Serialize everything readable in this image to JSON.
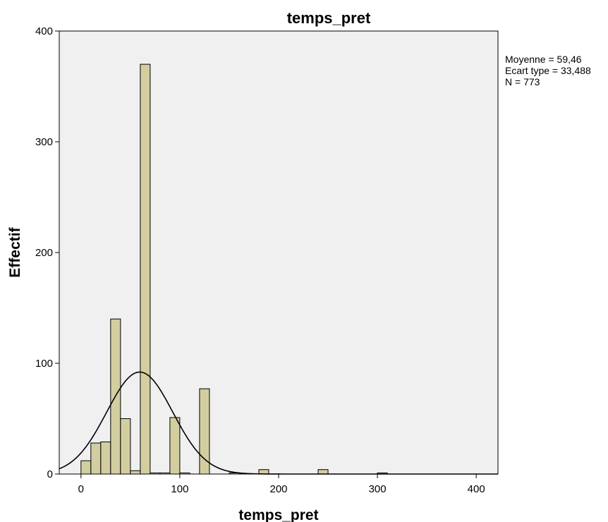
{
  "chart_data": {
    "type": "bar",
    "title": "temps_pret",
    "xlabel": "temps_pret",
    "ylabel": "Effectif",
    "xlim": [
      -22,
      422
    ],
    "ylim": [
      0,
      400
    ],
    "xticks": [
      "0",
      "100",
      "200",
      "300",
      "400"
    ],
    "yticks": [
      "0",
      "100",
      "200",
      "300",
      "400"
    ],
    "bin_width": 10,
    "bins": [
      {
        "x0": 0,
        "x1": 10,
        "count": 12
      },
      {
        "x0": 10,
        "x1": 20,
        "count": 28
      },
      {
        "x0": 20,
        "x1": 30,
        "count": 29
      },
      {
        "x0": 30,
        "x1": 40,
        "count": 140
      },
      {
        "x0": 40,
        "x1": 50,
        "count": 50
      },
      {
        "x0": 50,
        "x1": 60,
        "count": 3
      },
      {
        "x0": 60,
        "x1": 70,
        "count": 370
      },
      {
        "x0": 70,
        "x1": 80,
        "count": 1
      },
      {
        "x0": 80,
        "x1": 90,
        "count": 1
      },
      {
        "x0": 90,
        "x1": 100,
        "count": 51
      },
      {
        "x0": 100,
        "x1": 110,
        "count": 1
      },
      {
        "x0": 120,
        "x1": 130,
        "count": 77
      },
      {
        "x0": 150,
        "x1": 160,
        "count": 1
      },
      {
        "x0": 180,
        "x1": 190,
        "count": 4
      },
      {
        "x0": 240,
        "x1": 250,
        "count": 4
      },
      {
        "x0": 300,
        "x1": 310,
        "count": 1
      }
    ],
    "normal_curve": {
      "mean": 59.46,
      "std": 33.488,
      "n": 773
    },
    "stats_lines": [
      "Moyenne = 59,46",
      "Ecart type = 33,488",
      "N = 773"
    ],
    "colors": {
      "bar_fill": "#d3cea0",
      "bar_stroke": "#000000",
      "plot_bg": "#f0f0f0",
      "curve": "#000000"
    },
    "grid": false
  }
}
